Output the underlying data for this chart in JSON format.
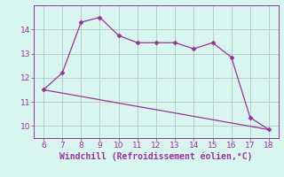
{
  "xlabel": "Windchill (Refroidissement éolien,°C)",
  "line1_x": [
    6,
    7,
    8,
    9,
    10,
    11,
    12,
    13,
    14,
    15,
    16,
    17,
    18
  ],
  "line1_y": [
    11.5,
    12.2,
    14.3,
    14.5,
    13.75,
    13.45,
    13.45,
    13.45,
    13.2,
    13.45,
    12.85,
    10.35,
    9.85
  ],
  "line2_x": [
    6,
    18
  ],
  "line2_y": [
    11.5,
    9.85
  ],
  "line_color": "#993399",
  "marker": "D",
  "marker_size": 2.5,
  "bg_color": "#d8f5f0",
  "grid_color": "#b0c8c4",
  "xlim": [
    5.5,
    18.5
  ],
  "ylim": [
    9.5,
    15.0
  ],
  "xticks": [
    6,
    7,
    8,
    9,
    10,
    11,
    12,
    13,
    14,
    15,
    16,
    17,
    18
  ],
  "yticks": [
    10,
    11,
    12,
    13,
    14
  ],
  "tick_color": "#993399",
  "label_color": "#993399",
  "tick_fontsize": 6.5,
  "xlabel_fontsize": 7.0
}
